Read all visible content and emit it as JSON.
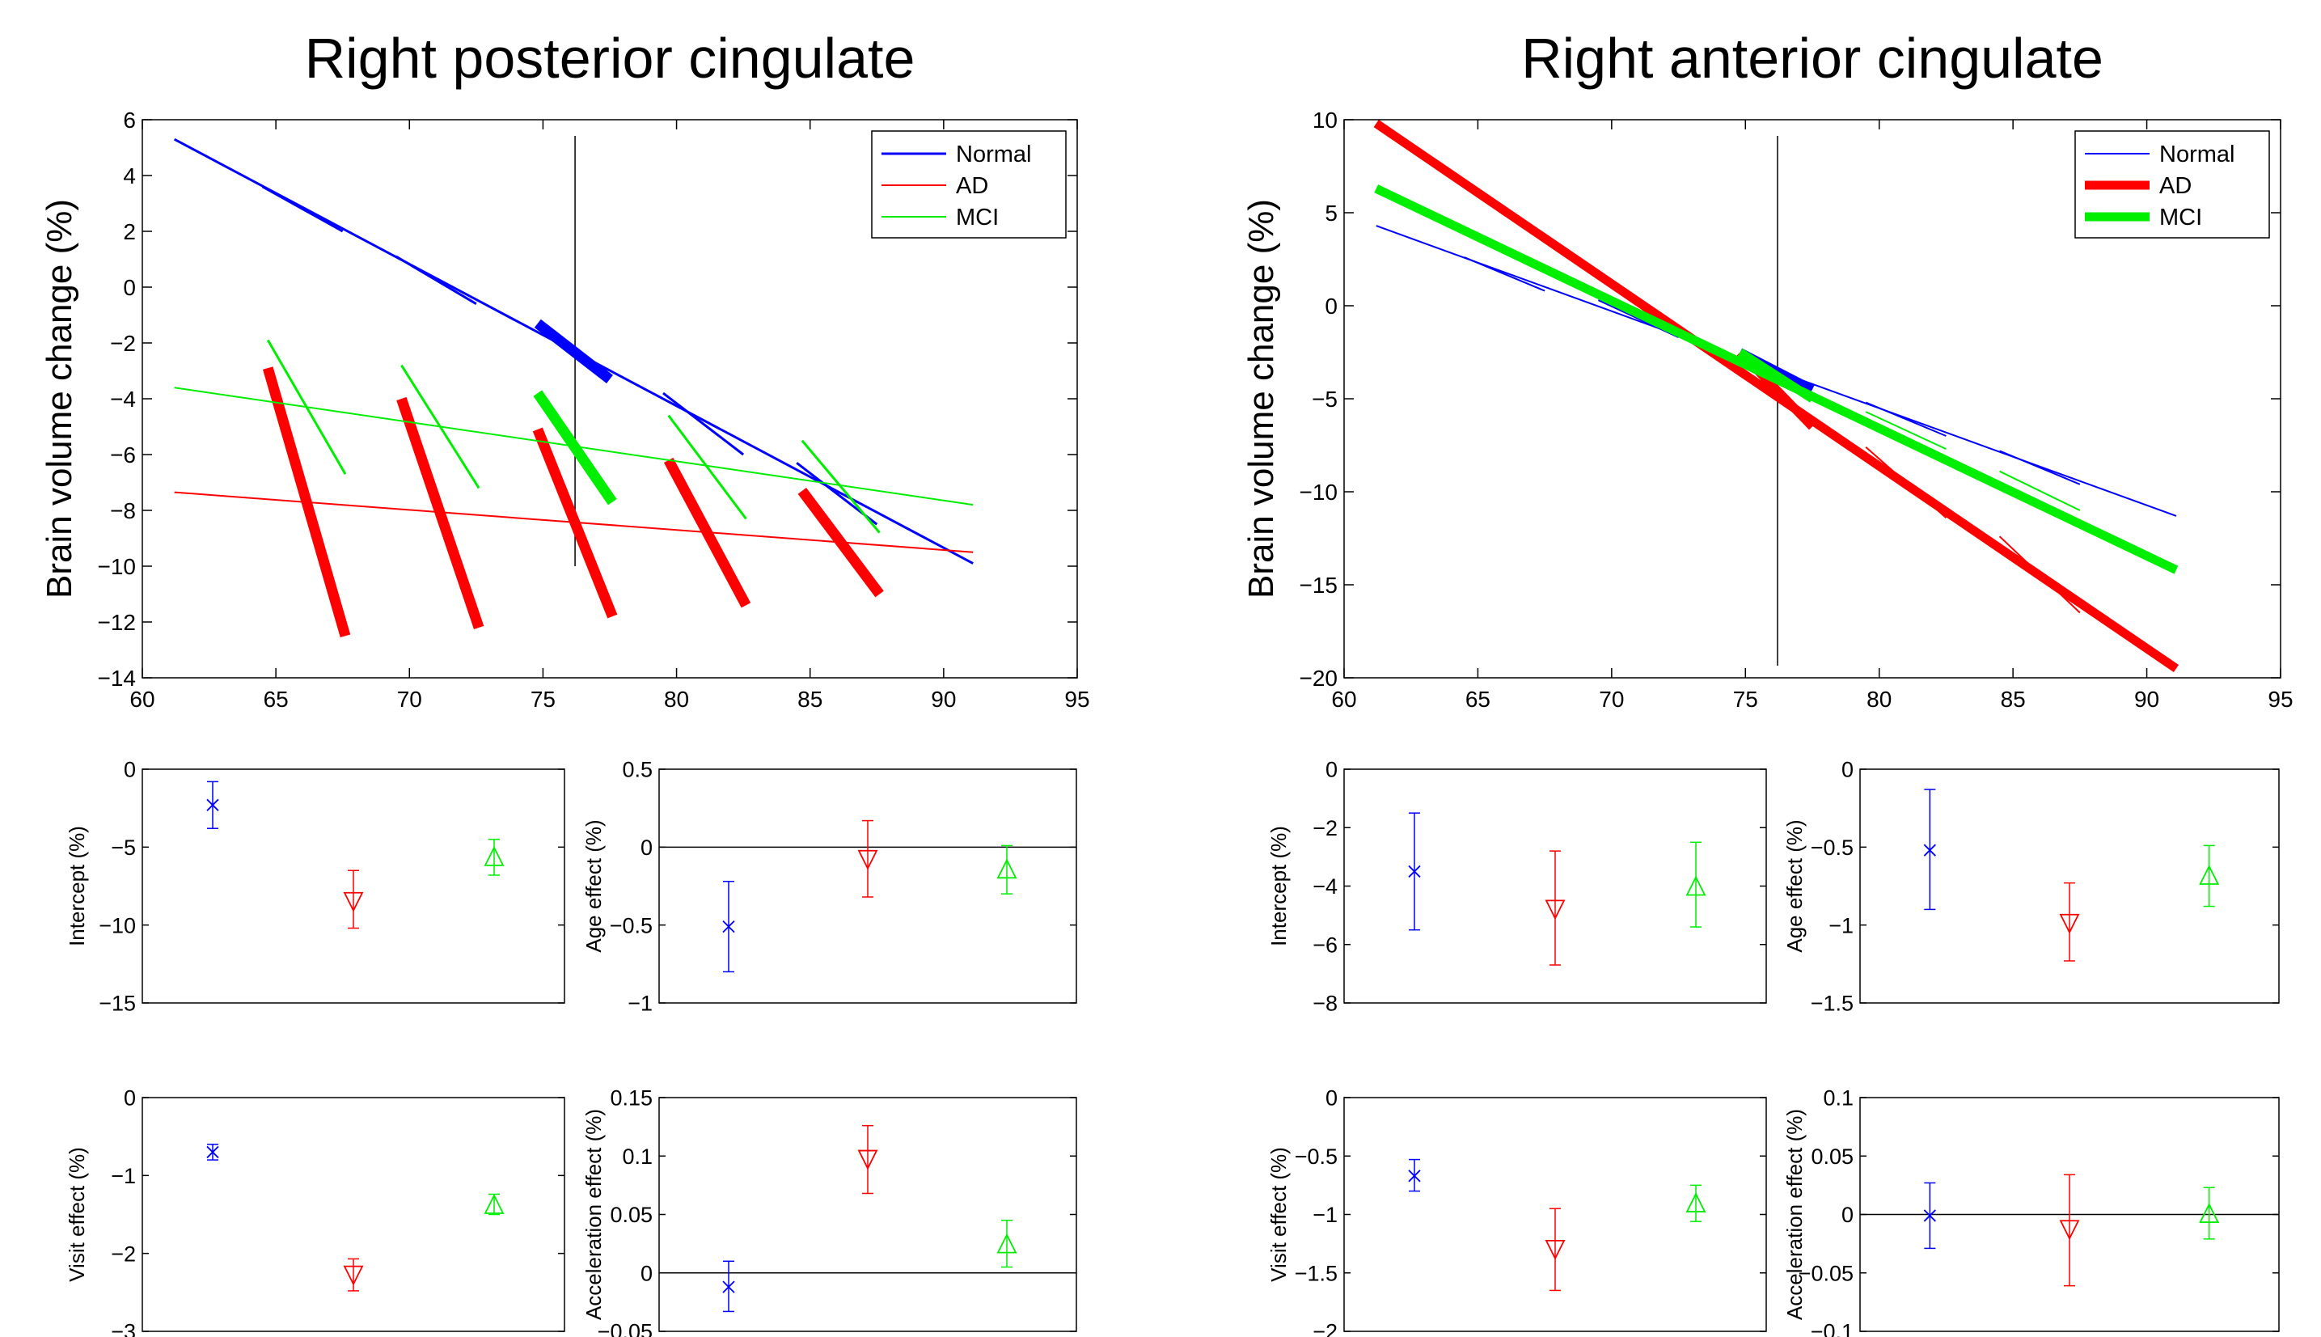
{
  "chart_data": [
    {
      "panel": "left-main",
      "type": "line",
      "title": "Right posterior cingulate",
      "xlabel": "",
      "ylabel": "Brain volume change (%)",
      "xlim": [
        60,
        95
      ],
      "ylim": [
        -14,
        6
      ],
      "xticks": [
        "60",
        "65",
        "70",
        "75",
        "80",
        "85",
        "90",
        "95"
      ],
      "yticks": [
        "−14",
        "−12",
        "−10",
        "−8",
        "−6",
        "−4",
        "−2",
        "0",
        "2",
        "4",
        "6"
      ],
      "legend": {
        "position": "top-right",
        "entries": [
          "Normal",
          "AD",
          "MCI"
        ]
      },
      "vline_x": 76.2,
      "series": [
        {
          "name": "Normal",
          "color": "#0000ff",
          "width": 3,
          "points": [
            [
              61.2,
              5.3
            ],
            [
              91.1,
              -9.9
            ]
          ],
          "segments": [
            {
              "points": [
                [
                  64.5,
                  3.6
                ],
                [
                  67.5,
                  2.0
                ]
              ],
              "width": 3
            },
            {
              "points": [
                [
                  69.5,
                  1.1
                ],
                [
                  72.5,
                  -0.6
                ]
              ],
              "width": 3
            },
            {
              "points": [
                [
                  74.8,
                  -1.3
                ],
                [
                  77.5,
                  -3.3
                ]
              ],
              "width": 13
            },
            {
              "points": [
                [
                  79.5,
                  -3.8
                ],
                [
                  82.5,
                  -6.0
                ]
              ],
              "width": 3
            },
            {
              "points": [
                [
                  84.5,
                  -6.3
                ],
                [
                  87.5,
                  -8.5
                ]
              ],
              "width": 3
            }
          ]
        },
        {
          "name": "AD",
          "color": "#ff0000",
          "width": 2,
          "points": [
            [
              61.2,
              -7.35
            ],
            [
              91.1,
              -9.5
            ]
          ],
          "segments": [
            {
              "points": [
                [
                  64.7,
                  -2.9
                ],
                [
                  67.6,
                  -12.5
                ]
              ],
              "width": 13
            },
            {
              "points": [
                [
                  69.7,
                  -4.0
                ],
                [
                  72.6,
                  -12.2
                ]
              ],
              "width": 13
            },
            {
              "points": [
                [
                  74.8,
                  -5.1
                ],
                [
                  77.6,
                  -11.8
                ]
              ],
              "width": 13
            },
            {
              "points": [
                [
                  79.7,
                  -6.2
                ],
                [
                  82.6,
                  -11.4
                ]
              ],
              "width": 13
            },
            {
              "points": [
                [
                  84.7,
                  -7.3
                ],
                [
                  87.6,
                  -11.0
                ]
              ],
              "width": 13
            }
          ]
        },
        {
          "name": "MCI",
          "color": "#00ee00",
          "width": 2,
          "points": [
            [
              61.2,
              -3.6
            ],
            [
              91.1,
              -7.8
            ]
          ],
          "segments": [
            {
              "points": [
                [
                  64.7,
                  -1.9
                ],
                [
                  67.6,
                  -6.7
                ]
              ],
              "width": 3
            },
            {
              "points": [
                [
                  69.7,
                  -2.8
                ],
                [
                  72.6,
                  -7.2
                ]
              ],
              "width": 3
            },
            {
              "points": [
                [
                  74.8,
                  -3.8
                ],
                [
                  77.6,
                  -7.7
                ]
              ],
              "width": 13
            },
            {
              "points": [
                [
                  79.7,
                  -4.6
                ],
                [
                  82.6,
                  -8.3
                ]
              ],
              "width": 3
            },
            {
              "points": [
                [
                  84.7,
                  -5.5
                ],
                [
                  87.6,
                  -8.8
                ]
              ],
              "width": 3
            }
          ]
        }
      ]
    },
    {
      "panel": "right-main",
      "type": "line",
      "title": "Right anterior cingulate",
      "xlabel": "",
      "ylabel": "Brain volume change (%)",
      "xlim": [
        60,
        95
      ],
      "ylim": [
        -20,
        10
      ],
      "xticks": [
        "60",
        "65",
        "70",
        "75",
        "80",
        "85",
        "90",
        "95"
      ],
      "yticks": [
        "−20",
        "−15",
        "−10",
        "−5",
        "0",
        "5",
        "10"
      ],
      "legend": {
        "position": "top-right",
        "entries": [
          "Normal",
          "AD",
          "MCI"
        ]
      },
      "vline_x": 76.2,
      "series": [
        {
          "name": "Normal",
          "color": "#0000ff",
          "width": 2,
          "points": [
            [
              61.2,
              4.3
            ],
            [
              91.1,
              -11.3
            ]
          ],
          "segments": [
            {
              "points": [
                [
                  64.5,
                  2.6
                ],
                [
                  67.5,
                  0.8
                ]
              ],
              "width": 2
            },
            {
              "points": [
                [
                  69.5,
                  0.3
                ],
                [
                  72.5,
                  -1.7
                ]
              ],
              "width": 2
            },
            {
              "points": [
                [
                  74.8,
                  -2.5
                ],
                [
                  77.5,
                  -4.5
                ]
              ],
              "width": 11
            },
            {
              "points": [
                [
                  79.5,
                  -5.2
                ],
                [
                  82.5,
                  -7.0
                ]
              ],
              "width": 2
            },
            {
              "points": [
                [
                  84.5,
                  -7.8
                ],
                [
                  87.5,
                  -9.6
                ]
              ],
              "width": 2
            }
          ]
        },
        {
          "name": "AD",
          "color": "#ff0000",
          "width": 11,
          "points": [
            [
              61.2,
              9.8
            ],
            [
              91.1,
              -19.5
            ]
          ],
          "segments": [
            {
              "points": [
                [
                  64.5,
                  6.5
                ],
                [
                  67.5,
                  3.4
                ]
              ],
              "width": 2
            },
            {
              "points": [
                [
                  69.5,
                  1.8
                ],
                [
                  72.5,
                  -1.5
                ]
              ],
              "width": 2
            },
            {
              "points": [
                [
                  74.8,
                  -2.5
                ],
                [
                  77.5,
                  -6.5
                ]
              ],
              "width": 11
            },
            {
              "points": [
                [
                  79.5,
                  -7.6
                ],
                [
                  82.5,
                  -11.4
                ]
              ],
              "width": 2
            },
            {
              "points": [
                [
                  84.5,
                  -12.4
                ],
                [
                  87.5,
                  -16.5
                ]
              ],
              "width": 2
            }
          ]
        },
        {
          "name": "MCI",
          "color": "#00ee00",
          "width": 11,
          "points": [
            [
              61.2,
              6.3
            ],
            [
              91.1,
              -14.2
            ]
          ],
          "segments": [
            {
              "points": [
                [
                  64.5,
                  4.0
                ],
                [
                  67.5,
                  2.0
                ]
              ],
              "width": 2
            },
            {
              "points": [
                [
                  69.5,
                  0.7
                ],
                [
                  72.5,
                  -1.3
                ]
              ],
              "width": 2
            },
            {
              "points": [
                [
                  74.8,
                  -2.5
                ],
                [
                  77.5,
                  -5.0
                ]
              ],
              "width": 11
            },
            {
              "points": [
                [
                  79.5,
                  -5.7
                ],
                [
                  82.5,
                  -7.7
                ]
              ],
              "width": 2
            },
            {
              "points": [
                [
                  84.5,
                  -8.9
                ],
                [
                  87.5,
                  -11.0
                ]
              ],
              "width": 2
            }
          ]
        }
      ]
    },
    {
      "panel": "left-intercept",
      "type": "scatter",
      "title": "",
      "xlabel": "",
      "ylabel": "Intercept (%)",
      "ylim": [
        -15,
        0
      ],
      "yticks": [
        "−15",
        "−10",
        "−5",
        "0"
      ],
      "zero_line": false,
      "groups": [
        {
          "name": "Normal",
          "marker": "x",
          "color": "#0000ff",
          "value": -2.3,
          "lower": -3.8,
          "upper": -0.8
        },
        {
          "name": "AD",
          "marker": "triangle-down",
          "color": "#ff0000",
          "value": -8.5,
          "lower": -10.2,
          "upper": -6.5
        },
        {
          "name": "MCI",
          "marker": "triangle-up",
          "color": "#00ee00",
          "value": -5.6,
          "lower": -6.8,
          "upper": -4.5
        }
      ]
    },
    {
      "panel": "left-age",
      "type": "scatter",
      "title": "",
      "xlabel": "",
      "ylabel": "Age effect (%)",
      "ylim": [
        -1,
        0.5
      ],
      "yticks": [
        "−1",
        "−0.5",
        "0",
        "0.5"
      ],
      "zero_line": true,
      "groups": [
        {
          "name": "Normal",
          "marker": "x",
          "color": "#0000ff",
          "value": -0.51,
          "lower": -0.8,
          "upper": -0.22
        },
        {
          "name": "AD",
          "marker": "triangle-down",
          "color": "#ff0000",
          "value": -0.08,
          "lower": -0.32,
          "upper": 0.17
        },
        {
          "name": "MCI",
          "marker": "triangle-up",
          "color": "#00ee00",
          "value": -0.14,
          "lower": -0.3,
          "upper": 0.01
        }
      ]
    },
    {
      "panel": "left-visit",
      "type": "scatter",
      "title": "",
      "xlabel": "",
      "ylabel": "Visit effect (%)",
      "ylim": [
        -3,
        0
      ],
      "yticks": [
        "−3",
        "−2",
        "−1",
        "0"
      ],
      "zero_line": false,
      "groups": [
        {
          "name": "Normal",
          "marker": "x",
          "color": "#0000ff",
          "value": -0.7,
          "lower": -0.8,
          "upper": -0.6
        },
        {
          "name": "AD",
          "marker": "triangle-down",
          "color": "#ff0000",
          "value": -2.28,
          "lower": -2.48,
          "upper": -2.07
        },
        {
          "name": "MCI",
          "marker": "triangle-up",
          "color": "#00ee00",
          "value": -1.37,
          "lower": -1.5,
          "upper": -1.24
        }
      ]
    },
    {
      "panel": "left-accel",
      "type": "scatter",
      "title": "",
      "xlabel": "",
      "ylabel": "Acceleration effect (%)",
      "ylim": [
        -0.05,
        0.15
      ],
      "yticks": [
        "−0.05",
        "0",
        "0.05",
        "0.1",
        "0.15"
      ],
      "zero_line": true,
      "groups": [
        {
          "name": "Normal",
          "marker": "x",
          "color": "#0000ff",
          "value": -0.012,
          "lower": -0.033,
          "upper": 0.01
        },
        {
          "name": "AD",
          "marker": "triangle-down",
          "color": "#ff0000",
          "value": 0.097,
          "lower": 0.068,
          "upper": 0.126
        },
        {
          "name": "MCI",
          "marker": "triangle-up",
          "color": "#00ee00",
          "value": 0.025,
          "lower": 0.005,
          "upper": 0.045
        }
      ]
    },
    {
      "panel": "right-intercept",
      "type": "scatter",
      "title": "",
      "xlabel": "",
      "ylabel": "Intercept (%)",
      "ylim": [
        -8,
        0
      ],
      "yticks": [
        "−8",
        "−6",
        "−4",
        "−2",
        "0"
      ],
      "zero_line": false,
      "groups": [
        {
          "name": "Normal",
          "marker": "x",
          "color": "#0000ff",
          "value": -3.5,
          "lower": -5.5,
          "upper": -1.5
        },
        {
          "name": "AD",
          "marker": "triangle-down",
          "color": "#ff0000",
          "value": -4.8,
          "lower": -6.7,
          "upper": -2.8
        },
        {
          "name": "MCI",
          "marker": "triangle-up",
          "color": "#00ee00",
          "value": -4.0,
          "lower": -5.4,
          "upper": -2.5
        }
      ]
    },
    {
      "panel": "right-age",
      "type": "scatter",
      "title": "",
      "xlabel": "",
      "ylabel": "Age effect (%)",
      "ylim": [
        -1.5,
        0
      ],
      "yticks": [
        "−1.5",
        "−1",
        "−0.5",
        "0"
      ],
      "zero_line": false,
      "groups": [
        {
          "name": "Normal",
          "marker": "x",
          "color": "#0000ff",
          "value": -0.52,
          "lower": -0.9,
          "upper": -0.13
        },
        {
          "name": "AD",
          "marker": "triangle-down",
          "color": "#ff0000",
          "value": -0.99,
          "lower": -1.23,
          "upper": -0.73
        },
        {
          "name": "MCI",
          "marker": "triangle-up",
          "color": "#00ee00",
          "value": -0.68,
          "lower": -0.88,
          "upper": -0.49
        }
      ]
    },
    {
      "panel": "right-visit",
      "type": "scatter",
      "title": "",
      "xlabel": "",
      "ylabel": "Visit effect (%)",
      "ylim": [
        -2,
        0
      ],
      "yticks": [
        "−2",
        "−1.5",
        "−1",
        "−0.5",
        "0"
      ],
      "zero_line": false,
      "groups": [
        {
          "name": "Normal",
          "marker": "x",
          "color": "#0000ff",
          "value": -0.67,
          "lower": -0.8,
          "upper": -0.53
        },
        {
          "name": "AD",
          "marker": "triangle-down",
          "color": "#ff0000",
          "value": -1.3,
          "lower": -1.65,
          "upper": -0.95
        },
        {
          "name": "MCI",
          "marker": "triangle-up",
          "color": "#00ee00",
          "value": -0.9,
          "lower": -1.06,
          "upper": -0.75
        }
      ]
    },
    {
      "panel": "right-accel",
      "type": "scatter",
      "title": "",
      "xlabel": "",
      "ylabel": "Acceleration effect (%)",
      "ylim": [
        -0.1,
        0.1
      ],
      "yticks": [
        "−0.1",
        "−0.05",
        "0",
        "0.05",
        "0.1"
      ],
      "zero_line": true,
      "groups": [
        {
          "name": "Normal",
          "marker": "x",
          "color": "#0000ff",
          "value": -0.001,
          "lower": -0.029,
          "upper": 0.027
        },
        {
          "name": "AD",
          "marker": "triangle-down",
          "color": "#ff0000",
          "value": -0.013,
          "lower": -0.061,
          "upper": 0.034
        },
        {
          "name": "MCI",
          "marker": "triangle-up",
          "color": "#00ee00",
          "value": 0.001,
          "lower": -0.021,
          "upper": 0.023
        }
      ]
    }
  ]
}
